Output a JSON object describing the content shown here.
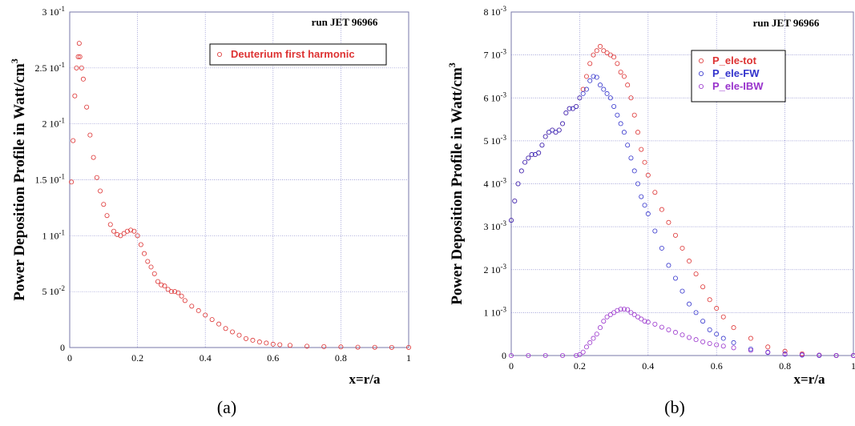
{
  "chart_data": [
    {
      "type": "scatter",
      "panel_label": "(a)",
      "ylabel": "Power Deposition Profile in Watt/cm",
      "ylabel_sup": "3",
      "xlabel": "x=r/a",
      "annotation": "run JET 96966",
      "xlim": [
        0,
        1
      ],
      "ylim": [
        0,
        0.3
      ],
      "xticks": [
        {
          "v": 0,
          "m": "0",
          "e": ""
        },
        {
          "v": 0.2,
          "m": "0.2",
          "e": ""
        },
        {
          "v": 0.4,
          "m": "0.4",
          "e": ""
        },
        {
          "v": 0.6,
          "m": "0.6",
          "e": ""
        },
        {
          "v": 0.8,
          "m": "0.8",
          "e": ""
        },
        {
          "v": 1,
          "m": "1",
          "e": ""
        }
      ],
      "yticks": [
        {
          "v": 0,
          "m": "0",
          "e": ""
        },
        {
          "v": 0.05,
          "m": "5 10",
          "e": "-2"
        },
        {
          "v": 0.1,
          "m": "1 10",
          "e": "-1"
        },
        {
          "v": 0.15,
          "m": "1.5 10",
          "e": "-1"
        },
        {
          "v": 0.2,
          "m": "2 10",
          "e": "-1"
        },
        {
          "v": 0.25,
          "m": "2.5 10",
          "e": "-1"
        },
        {
          "v": 0.3,
          "m": "3 10",
          "e": "-1"
        }
      ],
      "grid": true,
      "legend_position": "upper-right",
      "series": [
        {
          "name": "Deuterium first harmonic",
          "color": "#dd3333",
          "points": [
            [
              0.005,
              0.148
            ],
            [
              0.01,
              0.185
            ],
            [
              0.015,
              0.225
            ],
            [
              0.02,
              0.25
            ],
            [
              0.025,
              0.26
            ],
            [
              0.028,
              0.272
            ],
            [
              0.03,
              0.26
            ],
            [
              0.035,
              0.25
            ],
            [
              0.04,
              0.24
            ],
            [
              0.05,
              0.215
            ],
            [
              0.06,
              0.19
            ],
            [
              0.07,
              0.17
            ],
            [
              0.08,
              0.152
            ],
            [
              0.09,
              0.14
            ],
            [
              0.1,
              0.128
            ],
            [
              0.11,
              0.118
            ],
            [
              0.12,
              0.11
            ],
            [
              0.13,
              0.104
            ],
            [
              0.14,
              0.101
            ],
            [
              0.15,
              0.1
            ],
            [
              0.16,
              0.102
            ],
            [
              0.17,
              0.104
            ],
            [
              0.18,
              0.105
            ],
            [
              0.19,
              0.104
            ],
            [
              0.2,
              0.1
            ],
            [
              0.21,
              0.092
            ],
            [
              0.22,
              0.084
            ],
            [
              0.23,
              0.077
            ],
            [
              0.24,
              0.072
            ],
            [
              0.25,
              0.066
            ],
            [
              0.26,
              0.059
            ],
            [
              0.27,
              0.056
            ],
            [
              0.28,
              0.055
            ],
            [
              0.29,
              0.052
            ],
            [
              0.3,
              0.05
            ],
            [
              0.31,
              0.05
            ],
            [
              0.32,
              0.049
            ],
            [
              0.33,
              0.046
            ],
            [
              0.34,
              0.042
            ],
            [
              0.36,
              0.037
            ],
            [
              0.38,
              0.033
            ],
            [
              0.4,
              0.029
            ],
            [
              0.42,
              0.025
            ],
            [
              0.44,
              0.021
            ],
            [
              0.46,
              0.017
            ],
            [
              0.48,
              0.014
            ],
            [
              0.5,
              0.011
            ],
            [
              0.52,
              0.008
            ],
            [
              0.54,
              0.0065
            ],
            [
              0.56,
              0.005
            ],
            [
              0.58,
              0.004
            ],
            [
              0.6,
              0.003
            ],
            [
              0.62,
              0.0025
            ],
            [
              0.65,
              0.002
            ],
            [
              0.7,
              0.0012
            ],
            [
              0.75,
              0.0008
            ],
            [
              0.8,
              0.0005
            ],
            [
              0.85,
              0.0003
            ],
            [
              0.9,
              0.0002
            ],
            [
              0.95,
              0.0001
            ],
            [
              1.0,
              0.0001
            ]
          ]
        }
      ]
    },
    {
      "type": "scatter",
      "panel_label": "(b)",
      "ylabel": "Power Deposition Profile in Watt/cm",
      "ylabel_sup": "3",
      "xlabel": "x=r/a",
      "annotation": "run JET 96966",
      "xlim": [
        0,
        1
      ],
      "ylim": [
        0,
        0.008
      ],
      "xticks": [
        {
          "v": 0,
          "m": "0",
          "e": ""
        },
        {
          "v": 0.2,
          "m": "0.2",
          "e": ""
        },
        {
          "v": 0.4,
          "m": "0.4",
          "e": ""
        },
        {
          "v": 0.6,
          "m": "0.6",
          "e": ""
        },
        {
          "v": 0.8,
          "m": "0.8",
          "e": ""
        },
        {
          "v": 1,
          "m": "1",
          "e": ""
        }
      ],
      "yticks": [
        {
          "v": 0,
          "m": "0",
          "e": ""
        },
        {
          "v": 0.001,
          "m": "1 10",
          "e": "-3"
        },
        {
          "v": 0.002,
          "m": "2 10",
          "e": "-3"
        },
        {
          "v": 0.003,
          "m": "3 10",
          "e": "-3"
        },
        {
          "v": 0.004,
          "m": "4 10",
          "e": "-3"
        },
        {
          "v": 0.005,
          "m": "5 10",
          "e": "-3"
        },
        {
          "v": 0.006,
          "m": "6 10",
          "e": "-3"
        },
        {
          "v": 0.007,
          "m": "7 10",
          "e": "-3"
        },
        {
          "v": 0.008,
          "m": "8 10",
          "e": "-3"
        }
      ],
      "grid": true,
      "legend_position": "upper-right",
      "series": [
        {
          "name": "P_ele-tot",
          "color": "#dd3333",
          "points": [
            [
              0,
              0.00315
            ],
            [
              0.01,
              0.0036
            ],
            [
              0.02,
              0.004
            ],
            [
              0.03,
              0.0043
            ],
            [
              0.04,
              0.0045
            ],
            [
              0.05,
              0.0046
            ],
            [
              0.06,
              0.00468
            ],
            [
              0.07,
              0.00468
            ],
            [
              0.08,
              0.00472
            ],
            [
              0.09,
              0.0049
            ],
            [
              0.1,
              0.0051
            ],
            [
              0.11,
              0.0052
            ],
            [
              0.12,
              0.00525
            ],
            [
              0.13,
              0.0052
            ],
            [
              0.14,
              0.00525
            ],
            [
              0.15,
              0.0054
            ],
            [
              0.16,
              0.00565
            ],
            [
              0.17,
              0.00575
            ],
            [
              0.18,
              0.00575
            ],
            [
              0.19,
              0.0058
            ],
            [
              0.2,
              0.006
            ],
            [
              0.21,
              0.0062
            ],
            [
              0.22,
              0.0065
            ],
            [
              0.23,
              0.0068
            ],
            [
              0.24,
              0.007
            ],
            [
              0.25,
              0.0071
            ],
            [
              0.26,
              0.0072
            ],
            [
              0.27,
              0.0071
            ],
            [
              0.28,
              0.00705
            ],
            [
              0.29,
              0.007
            ],
            [
              0.3,
              0.00695
            ],
            [
              0.31,
              0.0068
            ],
            [
              0.32,
              0.0066
            ],
            [
              0.33,
              0.0065
            ],
            [
              0.34,
              0.0063
            ],
            [
              0.35,
              0.006
            ],
            [
              0.36,
              0.0056
            ],
            [
              0.37,
              0.0052
            ],
            [
              0.38,
              0.0048
            ],
            [
              0.39,
              0.0045
            ],
            [
              0.4,
              0.0042
            ],
            [
              0.42,
              0.0038
            ],
            [
              0.44,
              0.0034
            ],
            [
              0.46,
              0.0031
            ],
            [
              0.48,
              0.0028
            ],
            [
              0.5,
              0.0025
            ],
            [
              0.52,
              0.0022
            ],
            [
              0.54,
              0.0019
            ],
            [
              0.56,
              0.0016
            ],
            [
              0.58,
              0.0013
            ],
            [
              0.6,
              0.0011
            ],
            [
              0.62,
              0.0009
            ],
            [
              0.65,
              0.00065
            ],
            [
              0.7,
              0.0004
            ],
            [
              0.75,
              0.0002
            ],
            [
              0.8,
              0.0001
            ],
            [
              0.85,
              4e-05
            ],
            [
              0.9,
              1e-05
            ],
            [
              0.95,
              0
            ],
            [
              1,
              0
            ]
          ]
        },
        {
          "name": "P_ele-FW",
          "color": "#3333cc",
          "points": [
            [
              0,
              0.00315
            ],
            [
              0.01,
              0.0036
            ],
            [
              0.02,
              0.004
            ],
            [
              0.03,
              0.0043
            ],
            [
              0.04,
              0.0045
            ],
            [
              0.05,
              0.0046
            ],
            [
              0.06,
              0.00468
            ],
            [
              0.07,
              0.00468
            ],
            [
              0.08,
              0.00472
            ],
            [
              0.09,
              0.0049
            ],
            [
              0.1,
              0.0051
            ],
            [
              0.11,
              0.0052
            ],
            [
              0.12,
              0.00525
            ],
            [
              0.13,
              0.0052
            ],
            [
              0.14,
              0.00525
            ],
            [
              0.15,
              0.0054
            ],
            [
              0.16,
              0.00565
            ],
            [
              0.17,
              0.00575
            ],
            [
              0.18,
              0.00575
            ],
            [
              0.19,
              0.0058
            ],
            [
              0.2,
              0.006
            ],
            [
              0.21,
              0.0061
            ],
            [
              0.22,
              0.0062
            ],
            [
              0.23,
              0.0064
            ],
            [
              0.24,
              0.0065
            ],
            [
              0.25,
              0.00648
            ],
            [
              0.26,
              0.0063
            ],
            [
              0.27,
              0.0062
            ],
            [
              0.28,
              0.0061
            ],
            [
              0.29,
              0.006
            ],
            [
              0.3,
              0.0058
            ],
            [
              0.31,
              0.0056
            ],
            [
              0.32,
              0.0054
            ],
            [
              0.33,
              0.0052
            ],
            [
              0.34,
              0.0049
            ],
            [
              0.35,
              0.0046
            ],
            [
              0.36,
              0.0043
            ],
            [
              0.37,
              0.004
            ],
            [
              0.38,
              0.0037
            ],
            [
              0.39,
              0.0035
            ],
            [
              0.4,
              0.0033
            ],
            [
              0.42,
              0.0029
            ],
            [
              0.44,
              0.0025
            ],
            [
              0.46,
              0.0021
            ],
            [
              0.48,
              0.0018
            ],
            [
              0.5,
              0.0015
            ],
            [
              0.52,
              0.0012
            ],
            [
              0.54,
              0.001
            ],
            [
              0.56,
              0.0008
            ],
            [
              0.58,
              0.0006
            ],
            [
              0.6,
              0.0005
            ],
            [
              0.62,
              0.0004
            ],
            [
              0.65,
              0.0003
            ],
            [
              0.7,
              0.00015
            ],
            [
              0.75,
              7e-05
            ],
            [
              0.8,
              3e-05
            ],
            [
              0.85,
              1e-05
            ],
            [
              0.9,
              0
            ],
            [
              0.95,
              0
            ],
            [
              1,
              0
            ]
          ]
        },
        {
          "name": "P_ele-IBW",
          "color": "#9933cc",
          "points": [
            [
              0,
              0
            ],
            [
              0.05,
              0
            ],
            [
              0.1,
              0
            ],
            [
              0.15,
              0
            ],
            [
              0.19,
              0
            ],
            [
              0.2,
              2e-05
            ],
            [
              0.21,
              8e-05
            ],
            [
              0.22,
              0.0002
            ],
            [
              0.23,
              0.0003
            ],
            [
              0.24,
              0.0004
            ],
            [
              0.25,
              0.0005
            ],
            [
              0.26,
              0.00065
            ],
            [
              0.27,
              0.0008
            ],
            [
              0.28,
              0.0009
            ],
            [
              0.29,
              0.00095
            ],
            [
              0.3,
              0.001
            ],
            [
              0.31,
              0.00105
            ],
            [
              0.32,
              0.00108
            ],
            [
              0.33,
              0.00108
            ],
            [
              0.34,
              0.00107
            ],
            [
              0.35,
              0.001
            ],
            [
              0.36,
              0.00095
            ],
            [
              0.37,
              0.0009
            ],
            [
              0.38,
              0.00085
            ],
            [
              0.39,
              0.0008
            ],
            [
              0.4,
              0.00078
            ],
            [
              0.42,
              0.00073
            ],
            [
              0.44,
              0.00066
            ],
            [
              0.46,
              0.0006
            ],
            [
              0.48,
              0.00054
            ],
            [
              0.5,
              0.00048
            ],
            [
              0.52,
              0.00042
            ],
            [
              0.54,
              0.00037
            ],
            [
              0.56,
              0.00032
            ],
            [
              0.58,
              0.00028
            ],
            [
              0.6,
              0.00025
            ],
            [
              0.62,
              0.00022
            ],
            [
              0.65,
              0.00018
            ],
            [
              0.7,
              0.00012
            ],
            [
              0.75,
              8e-05
            ],
            [
              0.8,
              4e-05
            ],
            [
              0.85,
              2e-05
            ],
            [
              0.9,
              1e-05
            ],
            [
              0.95,
              0
            ],
            [
              1,
              0
            ]
          ]
        }
      ]
    }
  ]
}
